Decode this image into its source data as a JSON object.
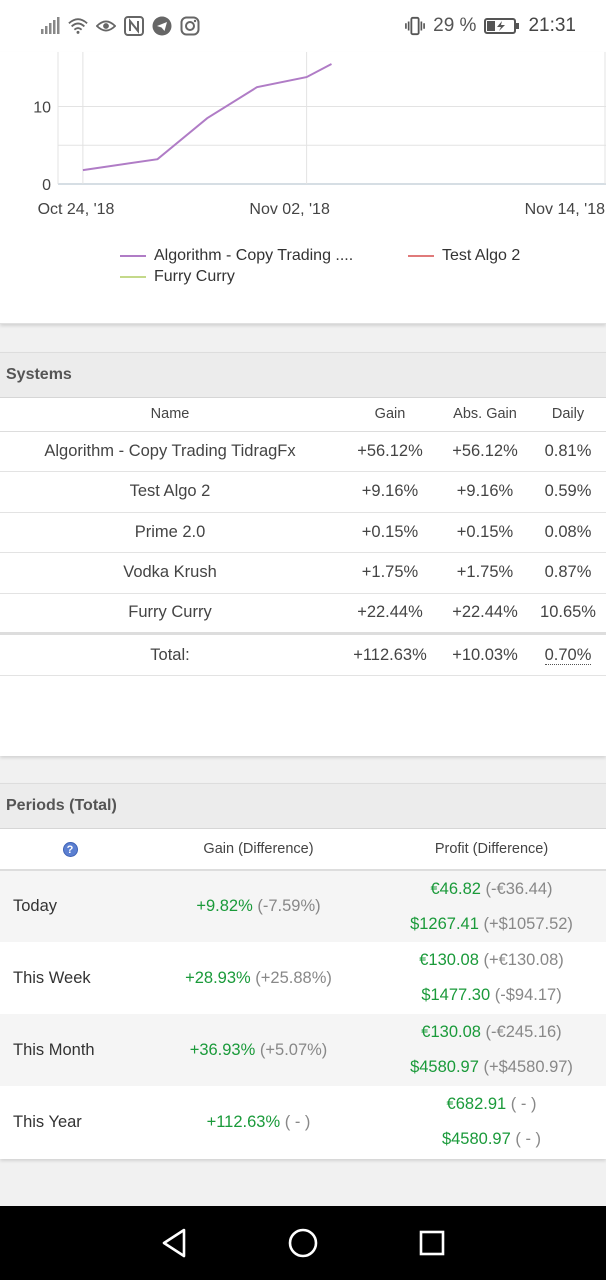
{
  "status_bar": {
    "battery": "29 %",
    "time": "21:31",
    "left_icons": [
      "signal-icon",
      "wifi-icon",
      "eye-icon",
      "nfc-icon",
      "telegram-icon",
      "instagram-icon"
    ],
    "right_icons": [
      "vibrate-icon",
      "battery-icon"
    ]
  },
  "chart_data": {
    "type": "line",
    "title": "",
    "xlabel": "",
    "ylabel": "",
    "x_ticks": [
      "Oct 24, '18",
      "Nov 02, '18",
      "Nov 14, '18"
    ],
    "y_ticks": [
      "0",
      "10"
    ],
    "ylim": [
      0,
      15
    ],
    "xlim": [
      "2018-10-23",
      "2018-11-14"
    ],
    "grid": true,
    "legend_placement": "bottom",
    "series": [
      {
        "name": "Algorithm - Copy Trading ....",
        "color": "#b07cc6",
        "x": [
          "2018-10-24",
          "2018-10-27",
          "2018-10-29",
          "2018-10-31",
          "2018-11-02",
          "2018-11-03"
        ],
        "values": [
          1.8,
          3.2,
          8.5,
          12.5,
          13.8,
          15.5
        ]
      },
      {
        "name": "Test Algo 2",
        "color": "#e07a7a",
        "x": [],
        "values": []
      },
      {
        "name": "Furry Curry",
        "color": "#c4d98a",
        "x": [],
        "values": []
      }
    ]
  },
  "systems": {
    "title": "Systems",
    "headers": {
      "name": "Name",
      "gain": "Gain",
      "abs_gain": "Abs. Gain",
      "daily": "Daily"
    },
    "rows": [
      {
        "name": "Algorithm - Copy Trading TidragFx",
        "gain": "+56.12%",
        "abs_gain": "+56.12%",
        "daily": "0.81%"
      },
      {
        "name": "Test Algo 2",
        "gain": "+9.16%",
        "abs_gain": "+9.16%",
        "daily": "0.59%"
      },
      {
        "name": "Prime 2.0",
        "gain": "+0.15%",
        "abs_gain": "+0.15%",
        "daily": "0.08%"
      },
      {
        "name": "Vodka Krush",
        "gain": "+1.75%",
        "abs_gain": "+1.75%",
        "daily": "0.87%"
      },
      {
        "name": "Furry Curry",
        "gain": "+22.44%",
        "abs_gain": "+22.44%",
        "daily": "10.65%"
      }
    ],
    "total": {
      "label": "Total:",
      "gain": "+112.63%",
      "abs_gain": "+10.03%",
      "daily": "0.70%"
    }
  },
  "periods": {
    "title": "Periods (Total)",
    "headers": {
      "help": "?",
      "gain": "Gain (Difference)",
      "profit": "Profit (Difference)"
    },
    "rows": [
      {
        "label": "Today",
        "gain": "+9.82%",
        "gain_diff": "(-7.59%)",
        "profit1": "€46.82",
        "profit1_diff": "(-€36.44)",
        "profit2": "$1267.41",
        "profit2_diff": "(+$1057.52)"
      },
      {
        "label": "This Week",
        "gain": "+28.93%",
        "gain_diff": "(+25.88%)",
        "profit1": "€130.08",
        "profit1_diff": "(+€130.08)",
        "profit2": "$1477.30",
        "profit2_diff": "(-$94.17)"
      },
      {
        "label": "This Month",
        "gain": "+36.93%",
        "gain_diff": "(+5.07%)",
        "profit1": "€130.08",
        "profit1_diff": "(-€245.16)",
        "profit2": "$4580.97",
        "profit2_diff": "(+$4580.97)"
      },
      {
        "label": "This Year",
        "gain": "+112.63%",
        "gain_diff": "( - )",
        "profit1": "€682.91",
        "profit1_diff": "( - )",
        "profit2": "$4580.97",
        "profit2_diff": "( - )"
      }
    ]
  },
  "nav": {
    "icons": [
      "back-icon",
      "home-icon",
      "recents-icon"
    ]
  }
}
